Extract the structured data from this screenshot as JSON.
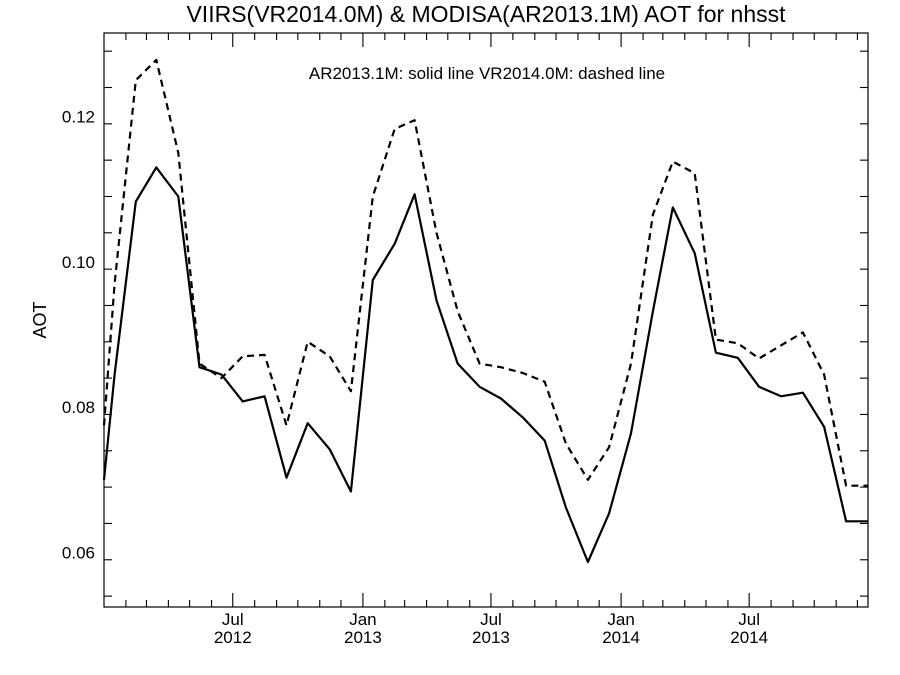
{
  "chart_data": {
    "type": "line",
    "title": "VIIRS(VR2014.0M) & MODISA(AR2013.1M)  AOT for nhsst",
    "annotation": "AR2013.1M: solid line   VR2014.0M: dashed line",
    "ylabel": "AOT",
    "xlabel": "",
    "ylim": [
      0.0525,
      0.1315
    ],
    "xlim": [
      "2012-01-01",
      "2014-12-16"
    ],
    "yticks": [
      {
        "value": 0.06,
        "label": "0.06"
      },
      {
        "value": 0.08,
        "label": "0.08"
      },
      {
        "value": 0.1,
        "label": "0.10"
      },
      {
        "value": 0.12,
        "label": "0.12"
      }
    ],
    "xticks": [
      {
        "date": "2012-07-01",
        "month": "Jul",
        "year": "2012"
      },
      {
        "date": "2013-01-01",
        "month": "Jan",
        "year": "2013"
      },
      {
        "date": "2013-07-01",
        "month": "Jul",
        "year": "2013"
      },
      {
        "date": "2014-01-01",
        "month": "Jan",
        "year": "2014"
      },
      {
        "date": "2014-07-01",
        "month": "Jul",
        "year": "2014"
      }
    ],
    "x": [
      "2012-01-01",
      "2012-01-16",
      "2012-02-15",
      "2012-03-15",
      "2012-04-15",
      "2012-05-15",
      "2012-06-15",
      "2012-07-15",
      "2012-08-15",
      "2012-09-15",
      "2012-10-15",
      "2012-11-15",
      "2012-12-15",
      "2013-01-15",
      "2013-02-15",
      "2013-03-15",
      "2013-04-15",
      "2013-05-15",
      "2013-06-15",
      "2013-07-15",
      "2013-08-15",
      "2013-09-15",
      "2013-10-15",
      "2013-11-15",
      "2013-12-15",
      "2014-01-15",
      "2014-02-15",
      "2014-03-15",
      "2014-04-15",
      "2014-05-15",
      "2014-06-15",
      "2014-07-15",
      "2014-08-15",
      "2014-09-15",
      "2014-10-15",
      "2014-11-15",
      "2014-12-16"
    ],
    "series": [
      {
        "name": "AR2013.1M",
        "style": "solid",
        "color": "#000000",
        "values": [
          0.07,
          0.0845,
          0.1083,
          0.113,
          0.109,
          0.0855,
          0.0845,
          0.0808,
          0.0815,
          0.0703,
          0.0778,
          0.0742,
          0.0684,
          0.0975,
          0.1025,
          0.1093,
          0.0947,
          0.086,
          0.0828,
          0.0812,
          0.0786,
          0.0754,
          0.0662,
          0.0587,
          0.0654,
          0.0764,
          0.0932,
          0.1075,
          0.1012,
          0.0875,
          0.0868,
          0.0828,
          0.0815,
          0.082,
          0.0773,
          0.0643,
          0.0643
        ]
      },
      {
        "name": "VR2014.0M",
        "style": "dashed",
        "color": "#000000",
        "values": [
          0.0775,
          0.097,
          0.125,
          0.1278,
          0.115,
          0.086,
          0.084,
          0.087,
          0.0872,
          0.0775,
          0.089,
          0.087,
          0.0822,
          0.109,
          0.1183,
          0.1195,
          0.104,
          0.0932,
          0.086,
          0.0855,
          0.0847,
          0.0835,
          0.075,
          0.07,
          0.0745,
          0.086,
          0.1065,
          0.1138,
          0.1122,
          0.0893,
          0.0888,
          0.0867,
          0.0885,
          0.0903,
          0.0845,
          0.0692,
          0.0692
        ]
      }
    ]
  }
}
